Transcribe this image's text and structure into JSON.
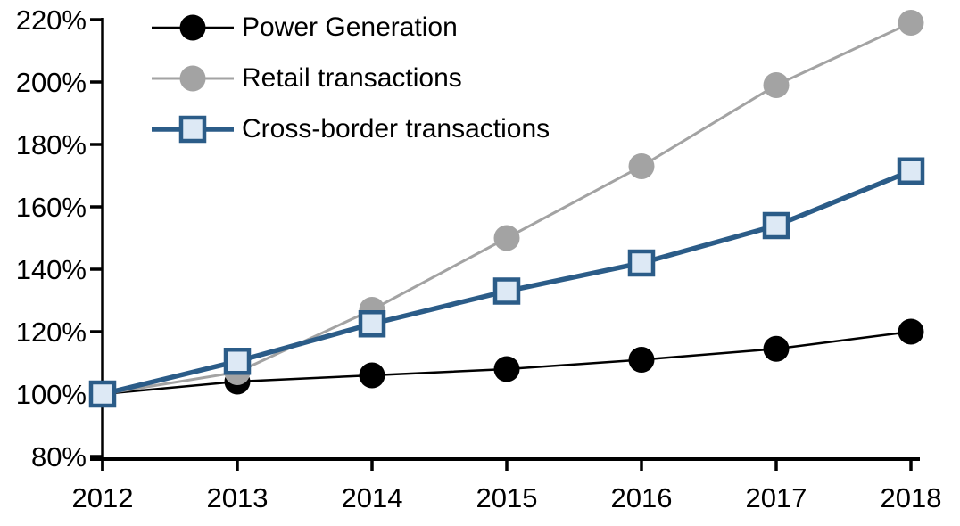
{
  "chart_data": {
    "type": "line",
    "title": "",
    "xlabel": "",
    "ylabel": "",
    "categories": [
      "2012",
      "2013",
      "2014",
      "2015",
      "2016",
      "2017",
      "2018"
    ],
    "series": [
      {
        "name": "Power Generation",
        "color": "#000000",
        "marker": "circle",
        "marker_fill": "#000000",
        "values": [
          100,
          104,
          106,
          108,
          111,
          114.5,
          120
        ]
      },
      {
        "name": "Retail transactions",
        "color": "#A3A3A3",
        "marker": "circle",
        "marker_fill": "#A3A3A3",
        "values": [
          100,
          107,
          127,
          150,
          173,
          199,
          219
        ]
      },
      {
        "name": "Cross-border transactions",
        "color": "#2B5C88",
        "marker": "square",
        "marker_fill": "#DDE9F5",
        "values": [
          100,
          110.5,
          122.5,
          133,
          142,
          154,
          171.5
        ]
      }
    ],
    "ylim": [
      80,
      220
    ],
    "y_tick_step": 20,
    "y_tick_labels": [
      "220%",
      "200%",
      "180%",
      "160%",
      "140%",
      "120%",
      "100%",
      "80%"
    ],
    "y_tick_values": [
      220,
      200,
      180,
      160,
      140,
      120,
      100,
      80
    ],
    "grid": false,
    "legend_position": "top-left-inside",
    "axis_color": "#000000"
  }
}
